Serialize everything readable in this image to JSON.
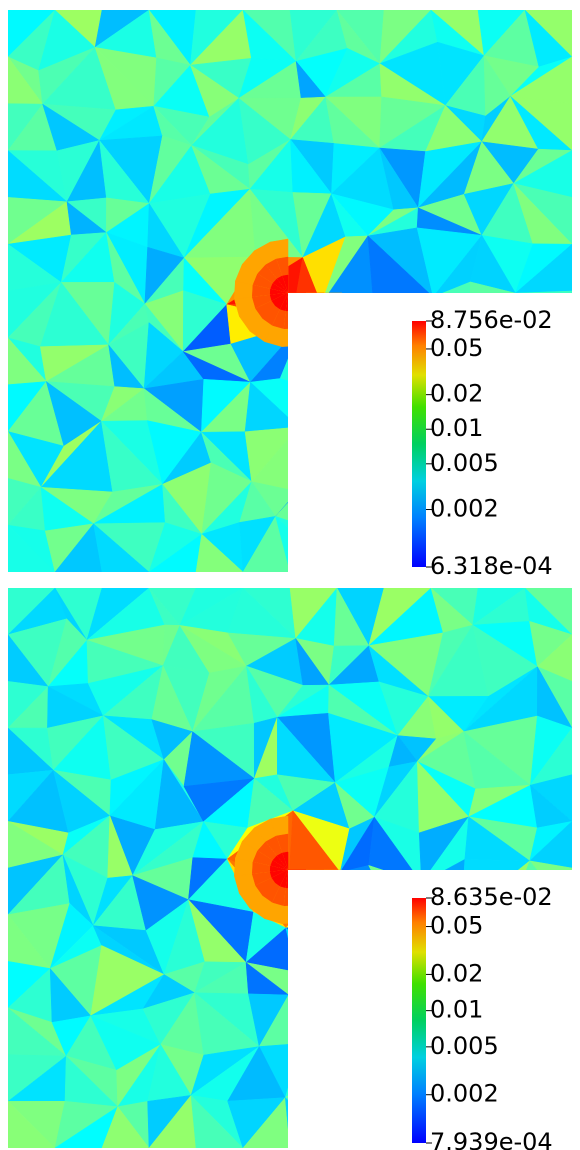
{
  "panels": [
    {
      "colorbar": {
        "scale": "log",
        "ticks": [
          {
            "value": 0.08756,
            "label": "8.756e-02"
          },
          0.05,
          0.02,
          0.01,
          0.005,
          0.002,
          {
            "value": 0.0006318,
            "label": "6.318e-04"
          }
        ]
      }
    },
    {
      "colorbar": {
        "scale": "log",
        "ticks": [
          {
            "value": 0.08635,
            "label": "8.635e-02"
          },
          0.05,
          0.02,
          0.01,
          0.005,
          0.002,
          {
            "value": 0.0007939,
            "label": "7.939e-04"
          }
        ]
      }
    }
  ]
}
